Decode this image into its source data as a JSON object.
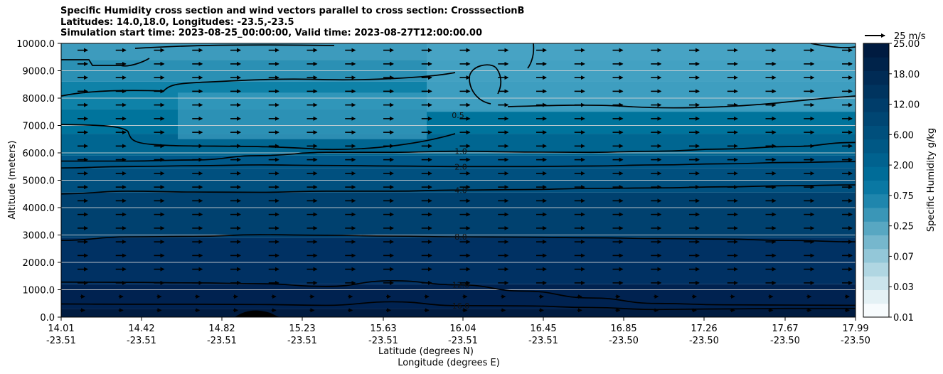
{
  "chart_data": {
    "type": "heatmap",
    "title_lines": [
      "Specific Humidity cross section and wind vectors parallel to cross section: CrosssectionB",
      "Latitudes: 14.0,18.0, Longitudes: -23.5,-23.5",
      "Simulation start time: 2023-08-25_00:00:00, Valid time: 2023-08-27T12:00:00.00"
    ],
    "ylabel": "Altitude (meters)",
    "xlabel_lat": "Latitude (degrees N)",
    "xlabel_lon": "Longitude (degrees E)",
    "ylim": [
      0,
      10000
    ],
    "yticks": [
      {
        "value": 0,
        "label": "0.0"
      },
      {
        "value": 1000,
        "label": "1000.0"
      },
      {
        "value": 2000,
        "label": "2000.0"
      },
      {
        "value": 3000,
        "label": "3000.0"
      },
      {
        "value": 4000,
        "label": "4000.0"
      },
      {
        "value": 5000,
        "label": "5000.0"
      },
      {
        "value": 6000,
        "label": "6000.0"
      },
      {
        "value": 7000,
        "label": "7000.0"
      },
      {
        "value": 8000,
        "label": "8000.0"
      },
      {
        "value": 9000,
        "label": "9000.0"
      },
      {
        "value": 10000,
        "label": "10000.0"
      }
    ],
    "xticks": [
      {
        "lat": "14.01",
        "lon": "-23.51"
      },
      {
        "lat": "14.42",
        "lon": "-23.51"
      },
      {
        "lat": "14.82",
        "lon": "-23.51"
      },
      {
        "lat": "15.23",
        "lon": "-23.51"
      },
      {
        "lat": "15.63",
        "lon": "-23.51"
      },
      {
        "lat": "16.04",
        "lon": "-23.51"
      },
      {
        "lat": "16.45",
        "lon": "-23.51"
      },
      {
        "lat": "16.85",
        "lon": "-23.50"
      },
      {
        "lat": "17.26",
        "lon": "-23.50"
      },
      {
        "lat": "17.67",
        "lon": "-23.50"
      },
      {
        "lat": "17.99",
        "lon": "-23.50"
      }
    ],
    "colorbar": {
      "label": "Specific Humidity g/kg",
      "levels": [
        "0.01",
        "0.03",
        "0.07",
        "0.25",
        "0.75",
        "2.00",
        "6.00",
        "12.00",
        "18.00",
        "25.00"
      ],
      "colors": [
        "#f7fbfd",
        "#e4f1f5",
        "#cbe4ec",
        "#b0d6e2",
        "#93c7d8",
        "#76b7cd",
        "#58a7c2",
        "#3a96b7",
        "#1f86ad",
        "#0a78a3",
        "#006c98",
        "#00628f",
        "#005885",
        "#004f7c",
        "#004673",
        "#003d6a",
        "#00345f",
        "#002b55",
        "#00234a",
        "#001b40"
      ]
    },
    "contours": [
      {
        "level": "16.0",
        "altitudes_m": [
          480,
          470,
          470,
          460,
          430,
          560,
          420,
          410,
          350,
          280,
          300,
          320,
          320
        ]
      },
      {
        "level": "12.0",
        "altitudes_m": [
          1280,
          1270,
          1250,
          1220,
          1120,
          1330,
          1180,
          950,
          700,
          500,
          450,
          440,
          430
        ]
      },
      {
        "level": "8.0",
        "altitudes_m": [
          2800,
          2930,
          2950,
          3010,
          2990,
          2960,
          2930,
          2920,
          2900,
          2870,
          2850,
          2800,
          2750
        ]
      },
      {
        "level": "4.0",
        "altitudes_m": [
          4500,
          4600,
          4570,
          4560,
          4600,
          4600,
          4640,
          4660,
          4700,
          4720,
          4760,
          4800,
          4830
        ]
      },
      {
        "level": "2.0",
        "altitudes_m": [
          5450,
          5500,
          5530,
          5560,
          5540,
          5520,
          5500,
          5500,
          5520,
          5560,
          5600,
          5650,
          5680
        ]
      },
      {
        "level": "1.0",
        "altitudes_m": [
          5700,
          5700,
          5740,
          5900,
          6020,
          6020,
          6060,
          6030,
          6020,
          6060,
          6140,
          6230,
          6380
        ]
      }
    ],
    "contour_label_8_0": "8.0",
    "contour_label_0_5": "0.5",
    "wind": {
      "reference_label": "25 m/s",
      "reference_speed_ms": 25,
      "direction": "parallel (left to right)"
    }
  }
}
